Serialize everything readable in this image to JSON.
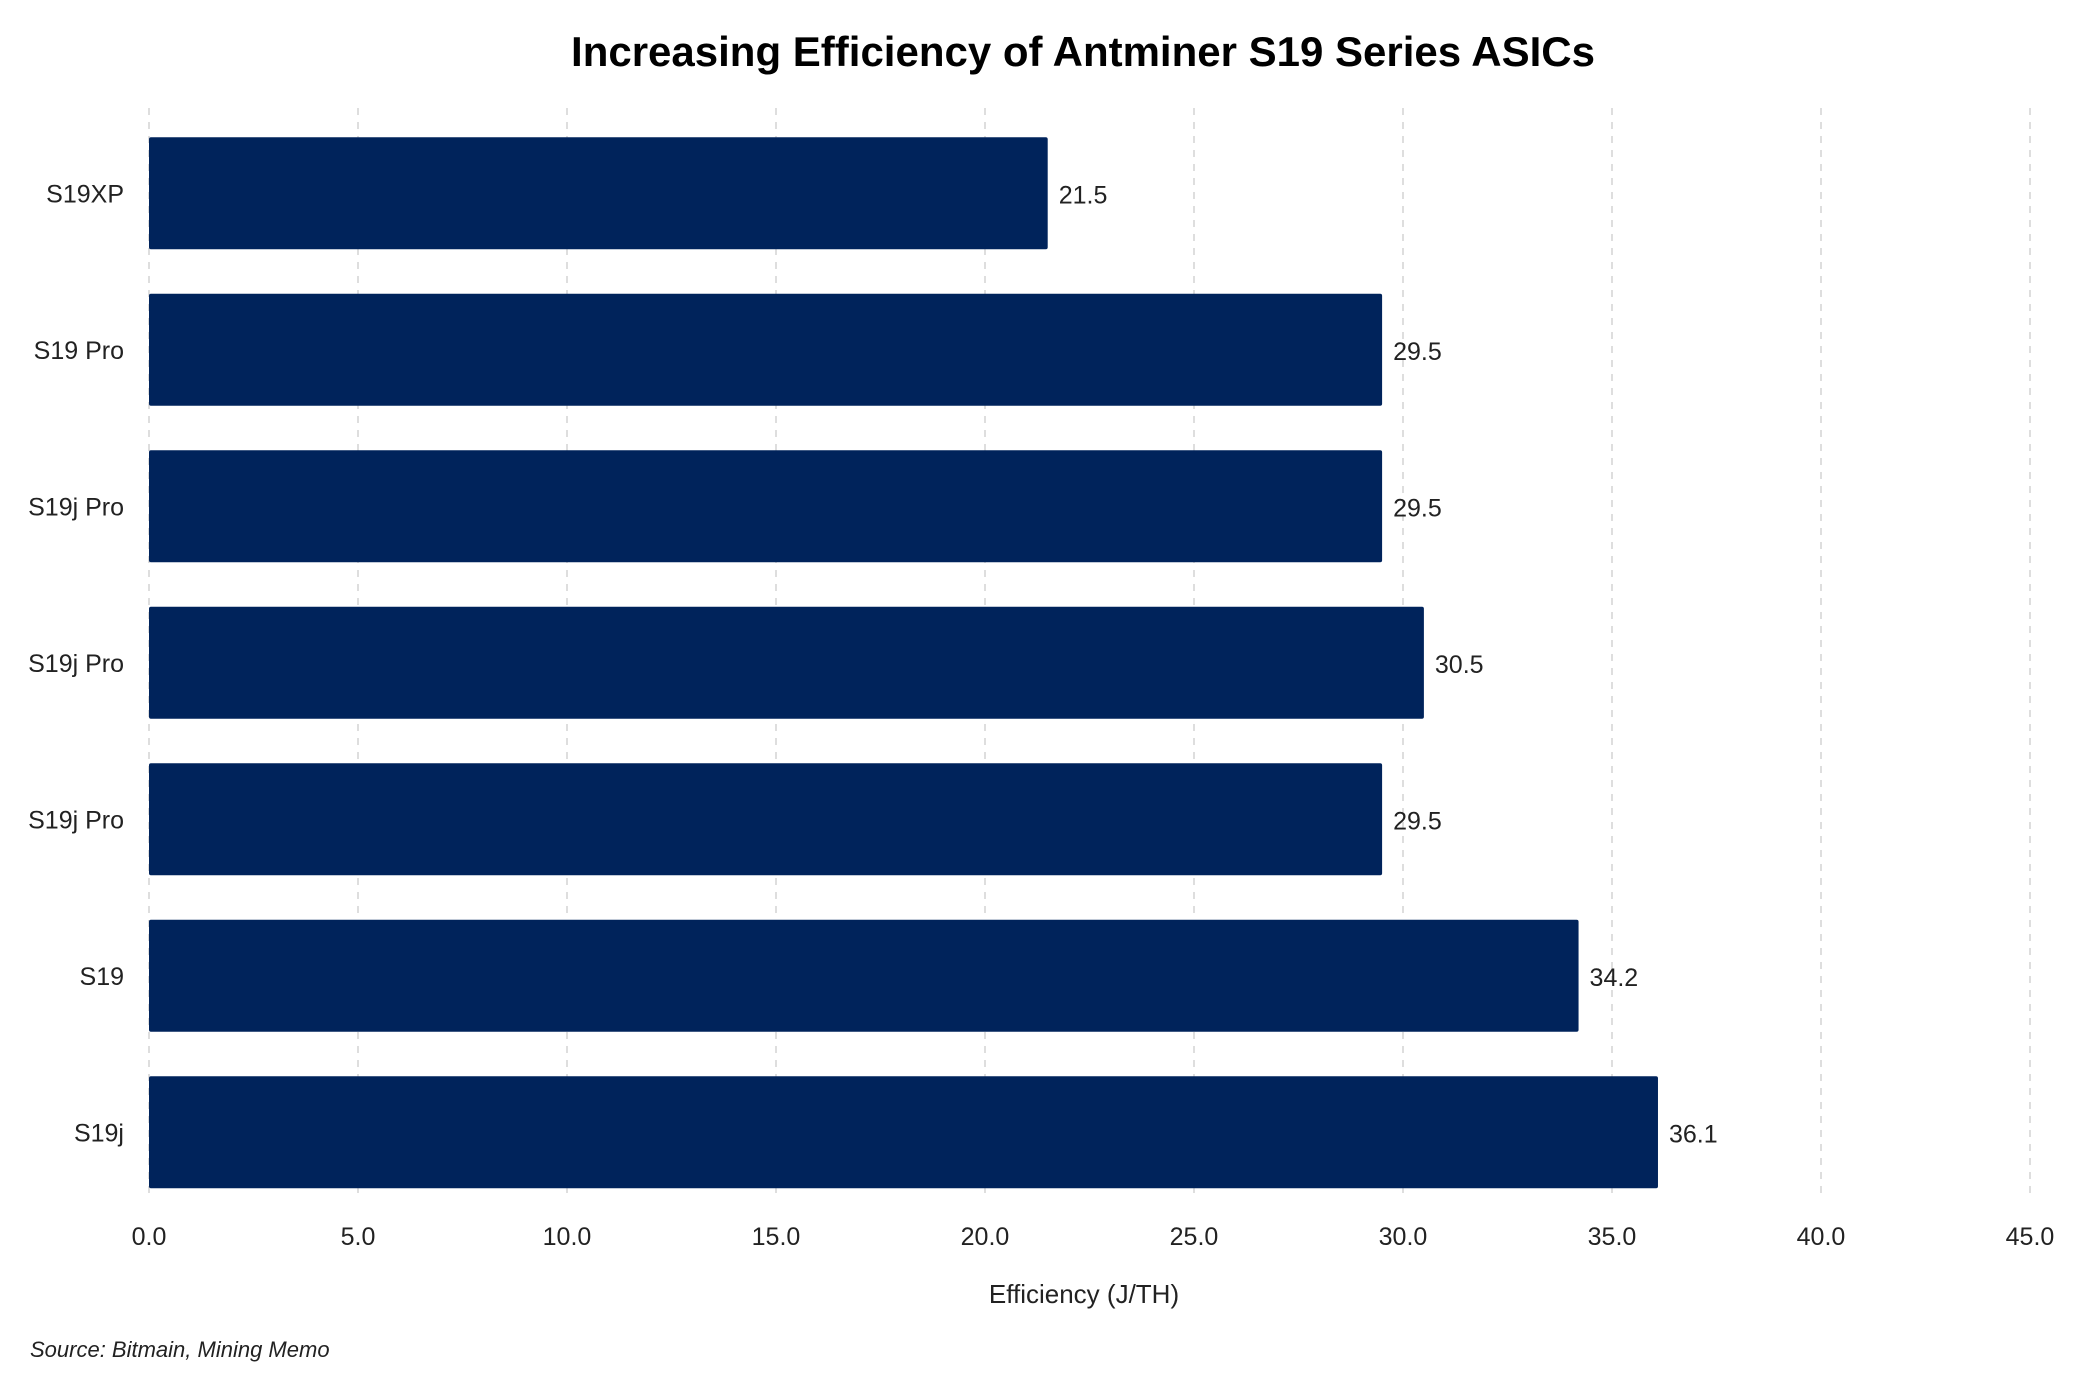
{
  "chart_data": {
    "type": "bar",
    "orientation": "horizontal",
    "title": "Increasing Efficiency of Antminer S19 Series ASICs",
    "xlabel": "Efficiency (J/TH)",
    "ylabel": "",
    "categories": [
      "S19XP",
      "S19 Pro",
      "S19j Pro",
      "S19j Pro",
      "S19j Pro",
      "S19",
      "S19j"
    ],
    "values": [
      21.5,
      29.5,
      29.5,
      30.5,
      29.5,
      34.2,
      36.1
    ],
    "data_labels": [
      "21.5",
      "29.5",
      "29.5",
      "30.5",
      "29.5",
      "34.2",
      "36.1"
    ],
    "xlim": [
      0,
      45
    ],
    "xticks": [
      0,
      5,
      10,
      15,
      20,
      25,
      30,
      35,
      40,
      45
    ],
    "xtick_labels": [
      "0.0",
      "5.0",
      "10.0",
      "15.0",
      "20.0",
      "25.0",
      "30.0",
      "35.0",
      "40.0",
      "45.0"
    ],
    "grid": true,
    "grid_style": "dashed vertical",
    "legend": "none",
    "bar_color": "#00235B",
    "source": "Source: Bitmain, Mining Memo"
  }
}
